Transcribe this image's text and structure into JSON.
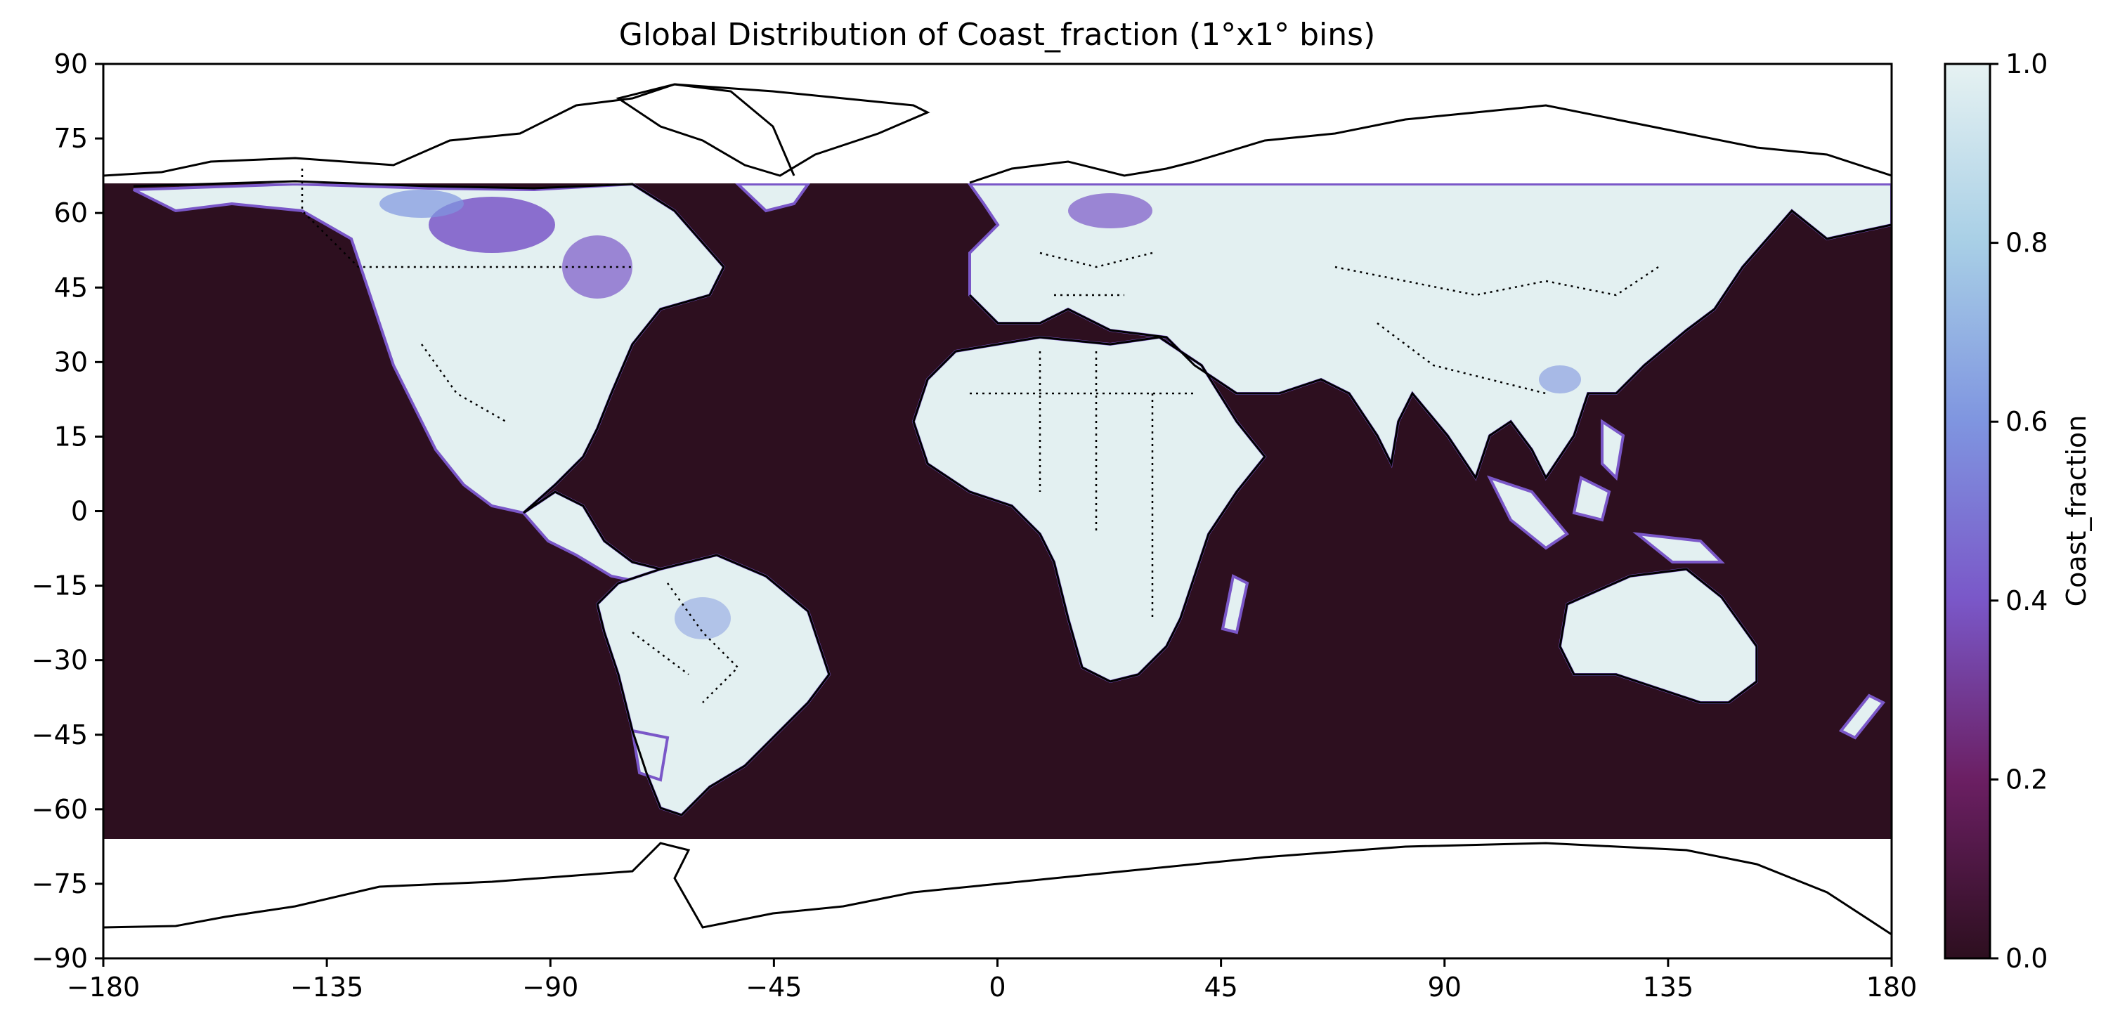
{
  "title": "Global Distribution of Coast_fraction (1°x1° bins)",
  "colorbar": {
    "label": "Coast_fraction",
    "ticks": [
      "0.0",
      "0.2",
      "0.4",
      "0.6",
      "0.8",
      "1.0"
    ],
    "range": [
      0.0,
      1.0
    ],
    "colors": [
      "#2d0f1f",
      "#6b1f63",
      "#7a57c8",
      "#7f95e0",
      "#a8cfe6",
      "#e6f2f2"
    ]
  },
  "chart_data": {
    "type": "heatmap",
    "title": "Global Distribution of Coast_fraction (1°x1° bins)",
    "x_ticks": [
      "−180",
      "−135",
      "−90",
      "−45",
      "0",
      "45",
      "90",
      "135",
      "180"
    ],
    "y_ticks": [
      "90",
      "75",
      "60",
      "45",
      "30",
      "15",
      "0",
      "−15",
      "−30",
      "−45",
      "−60",
      "−75",
      "−90"
    ],
    "xlim": [
      -180,
      180
    ],
    "ylim": [
      -90,
      90
    ],
    "data_lat_range": [
      -66,
      66
    ],
    "ocean_value": 0.0,
    "land_value_typical": 0.95,
    "colorbar_label": "Coast_fraction",
    "colorbar_range": [
      0.0,
      1.0
    ]
  }
}
